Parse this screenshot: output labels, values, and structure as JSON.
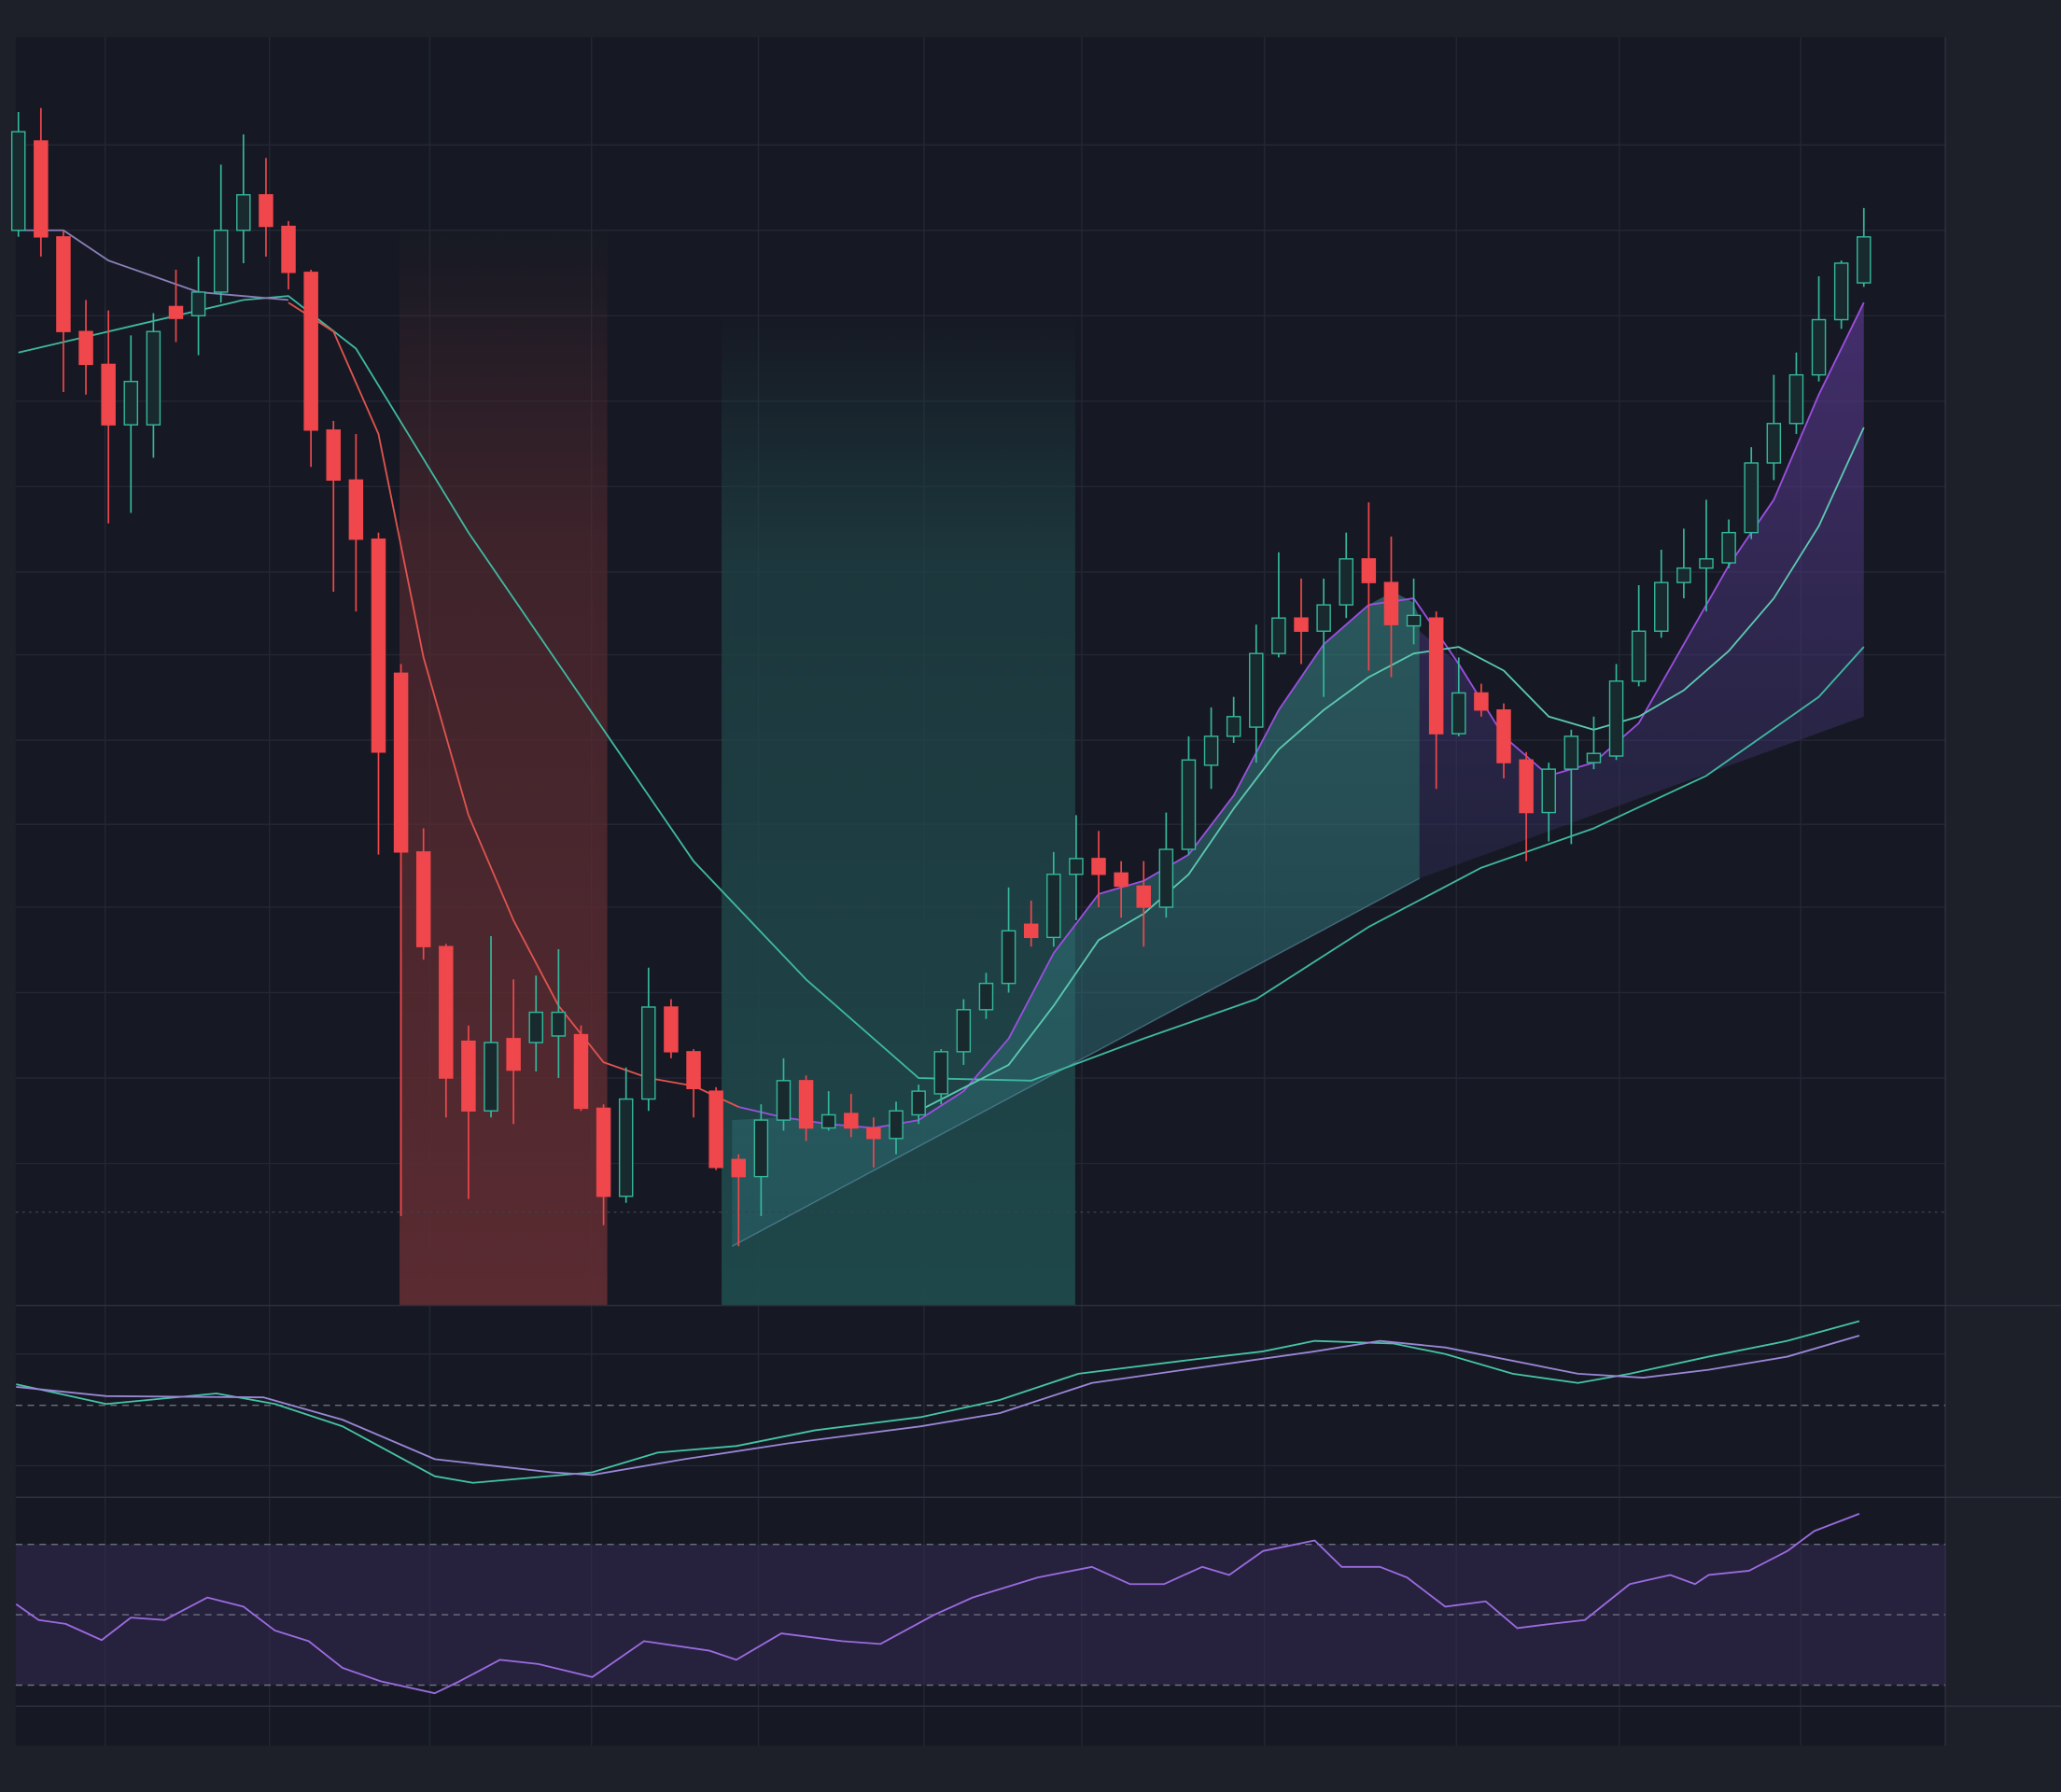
{
  "chart_data": [
    {
      "type": "candlestick",
      "up_color": "#35b79b",
      "down_color": "#ef474c",
      "xlim": [
        -0.5,
        82.5
      ],
      "ylim": [
        7,
        972
      ],
      "open": [
        825,
        893,
        820,
        748,
        723,
        677,
        677,
        767,
        760,
        778,
        825,
        852,
        828,
        793,
        673,
        635,
        590,
        488,
        352,
        280,
        208,
        155,
        210,
        207,
        212,
        213,
        157,
        90,
        164,
        234,
        200,
        170,
        118,
        105,
        148,
        178,
        142,
        153,
        142,
        134,
        152,
        168,
        200,
        232,
        252,
        297,
        287,
        335,
        347,
        336,
        326,
        310,
        354,
        418,
        440,
        447,
        503,
        530,
        520,
        540,
        575,
        557,
        524,
        530,
        442,
        473,
        460,
        422,
        382,
        415,
        420,
        425,
        482,
        520,
        557,
        568,
        572,
        595,
        648,
        678,
        715,
        757,
        785
      ],
      "high": [
        915,
        918,
        825,
        772,
        764,
        745,
        762,
        795,
        805,
        875,
        898,
        880,
        832,
        795,
        680,
        670,
        595,
        495,
        370,
        282,
        220,
        288,
        255,
        258,
        278,
        220,
        160,
        188,
        264,
        240,
        202,
        173,
        122,
        160,
        195,
        182,
        170,
        168,
        150,
        162,
        175,
        202,
        240,
        260,
        325,
        315,
        352,
        380,
        368,
        345,
        345,
        382,
        440,
        462,
        470,
        525,
        580,
        560,
        560,
        595,
        618,
        592,
        560,
        535,
        500,
        480,
        465,
        428,
        420,
        445,
        455,
        495,
        555,
        582,
        598,
        620,
        605,
        660,
        715,
        732,
        790,
        802,
        842
      ],
      "low": [
        820,
        805,
        702,
        700,
        602,
        610,
        652,
        740,
        730,
        770,
        800,
        805,
        780,
        645,
        550,
        535,
        350,
        75,
        270,
        150,
        88,
        150,
        145,
        185,
        180,
        155,
        68,
        85,
        155,
        195,
        150,
        110,
        52,
        75,
        140,
        132,
        140,
        135,
        112,
        122,
        145,
        160,
        190,
        225,
        245,
        280,
        280,
        300,
        310,
        302,
        280,
        302,
        350,
        400,
        435,
        420,
        500,
        495,
        470,
        530,
        490,
        485,
        510,
        400,
        440,
        455,
        408,
        345,
        360,
        358,
        415,
        422,
        478,
        515,
        545,
        535,
        568,
        590,
        635,
        670,
        710,
        750,
        782
      ],
      "close": [
        900,
        820,
        748,
        723,
        677,
        710,
        748,
        758,
        778,
        825,
        852,
        828,
        793,
        673,
        635,
        590,
        428,
        352,
        280,
        180,
        155,
        207,
        186,
        230,
        230,
        157,
        90,
        164,
        234,
        200,
        172,
        112,
        105,
        148,
        178,
        142,
        152,
        142,
        134,
        155,
        170,
        200,
        232,
        252,
        292,
        287,
        335,
        347,
        335,
        326,
        310,
        354,
        422,
        440,
        455,
        503,
        530,
        520,
        540,
        575,
        557,
        525,
        532,
        442,
        473,
        460,
        420,
        382,
        415,
        440,
        427,
        482,
        520,
        557,
        568,
        575,
        595,
        648,
        678,
        715,
        757,
        800,
        820
      ],
      "overlays": [
        {
          "color": "#3fb8a0",
          "x": [
            0,
            5,
            10,
            12,
            15,
            20,
            25,
            30,
            35,
            40,
            45,
            50,
            55,
            60,
            65,
            70,
            75,
            80,
            82
          ],
          "values": [
            732,
            752,
            772,
            775,
            735,
            595,
            470,
            345,
            255,
            180,
            178,
            210,
            240,
            295,
            340,
            370,
            410,
            470,
            508
          ]
        },
        {
          "color": "#8a7fb8",
          "x": [
            0,
            2,
            4,
            6,
            8,
            10,
            12
          ],
          "values": [
            825,
            825,
            802,
            790,
            778,
            775,
            772
          ]
        },
        {
          "color": "#e0534f",
          "x": [
            12,
            14,
            16,
            18,
            20,
            22,
            24,
            26,
            28,
            30,
            32
          ],
          "values": [
            770,
            748,
            670,
            500,
            380,
            300,
            235,
            192,
            180,
            174,
            158
          ]
        },
        {
          "color": "#9b4fe0",
          "x": [
            32,
            34,
            36,
            38,
            40,
            42,
            44,
            46,
            48,
            50,
            52,
            54,
            56,
            58,
            60,
            62,
            64,
            66,
            68,
            70,
            72,
            74,
            76,
            78,
            80,
            82
          ],
          "values": [
            158,
            150,
            145,
            142,
            148,
            170,
            210,
            275,
            320,
            330,
            350,
            395,
            460,
            510,
            540,
            545,
            495,
            440,
            410,
            420,
            450,
            510,
            570,
            620,
            700,
            770
          ]
        },
        {
          "color": "#5cc9b0",
          "x": [
            40,
            44,
            46,
            48,
            50,
            52,
            54,
            56,
            58,
            60,
            62,
            64,
            66,
            68,
            70,
            72,
            74,
            76,
            78,
            80,
            82
          ],
          "values": [
            155,
            190,
            235,
            285,
            305,
            335,
            385,
            430,
            460,
            485,
            503,
            508,
            490,
            455,
            445,
            455,
            475,
            505,
            545,
            600,
            675
          ]
        }
      ]
    },
    {
      "type": "line",
      "xlim": [
        -0.5,
        82.5
      ],
      "ylim": [
        -69,
        76
      ],
      "yticks": [
        0
      ],
      "series": [
        {
          "color": "#46c3a5",
          "x": [
            -0.1,
            3.9,
            8.8,
            11.4,
            14.4,
            18.5,
            20.2,
            25.5,
            28.4,
            31.9,
            35.4,
            40.1,
            43.6,
            47.1,
            51.8,
            55.3,
            57.6,
            61.1,
            63.4,
            66.4,
            69.3,
            71.6,
            75.1,
            78.6,
            81.8
          ],
          "values": [
            16,
            1,
            9,
            1,
            -16,
            -54,
            -59,
            -51,
            -36,
            -31,
            -19,
            -9,
            4,
            24,
            34,
            41,
            49,
            47,
            39,
            24,
            17,
            24,
            37,
            49,
            64
          ]
        },
        {
          "color": "#9a86d6",
          "x": [
            -0.1,
            3.9,
            10.9,
            14.4,
            18.5,
            23.7,
            25.5,
            29.6,
            34.2,
            40.1,
            43.6,
            47.7,
            51.8,
            57.6,
            60.5,
            63.4,
            69.3,
            72.2,
            75.1,
            78.6,
            81.8
          ],
          "values": [
            14,
            7,
            6,
            -11,
            -41,
            -51,
            -53,
            -41,
            -29,
            -16,
            -6,
            17,
            27,
            41,
            49,
            44,
            24,
            21,
            27,
            37,
            53
          ]
        }
      ]
    },
    {
      "type": "line",
      "xlim": [
        -0.5,
        82.5
      ],
      "ylim": [
        24,
        83
      ],
      "yticks": [
        30,
        50,
        70
      ],
      "band_color": "#3a2d5c",
      "series": [
        {
          "color": "#9b6be0",
          "x": [
            -0.1,
            0.9,
            2.1,
            3.7,
            5.0,
            6.5,
            8.4,
            10.0,
            11.4,
            12.9,
            14.4,
            16.1,
            18.5,
            19.6,
            21.4,
            23.1,
            25.5,
            27.8,
            30.7,
            31.9,
            33.9,
            36.6,
            38.3,
            40.7,
            42.4,
            45.3,
            47.7,
            49.4,
            50.9,
            52.6,
            53.8,
            55.3,
            57.6,
            58.8,
            60.5,
            61.7,
            63.4,
            65.2,
            66.6,
            68.1,
            69.6,
            71.6,
            73.4,
            74.5,
            75.1,
            76.9,
            78.6,
            79.8,
            81.8
          ],
          "values": [
            53,
            48.5,
            47.4,
            42.8,
            49.2,
            48.5,
            54.9,
            52.3,
            45.5,
            42.5,
            34.9,
            31.1,
            27.7,
            31.1,
            37.2,
            36,
            32.3,
            42.5,
            39.8,
            37.2,
            44.7,
            42.5,
            41.7,
            50,
            54.9,
            60.6,
            63.6,
            58.7,
            58.7,
            63.6,
            61.3,
            68.1,
            71.1,
            63.6,
            63.6,
            60.6,
            52.3,
            53.8,
            46.2,
            47.4,
            48.5,
            58.7,
            61.3,
            58.7,
            61.3,
            62.5,
            68.1,
            73.8,
            78.7
          ]
        }
      ]
    }
  ]
}
